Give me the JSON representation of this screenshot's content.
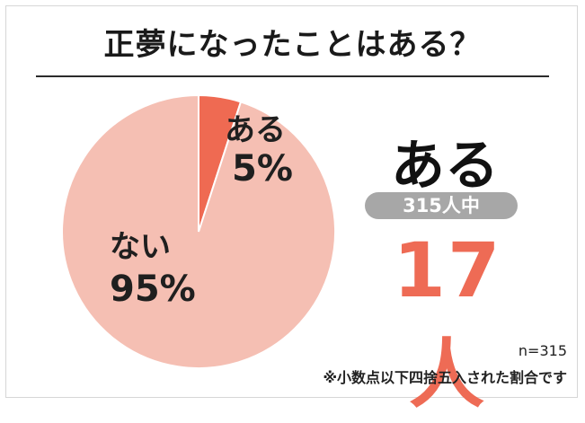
{
  "title": "正夢になったことはある？",
  "chart_data": {
    "type": "pie",
    "title": "正夢になったことはある？",
    "slices": [
      {
        "label": "ある",
        "value": 5,
        "display": "5%",
        "color": "#ef6a52"
      },
      {
        "label": "ない",
        "value": 95,
        "display": "95%",
        "color": "#f5bfb3"
      }
    ],
    "start": "12 o'clock",
    "direction": "clockwise"
  },
  "stat": {
    "heading": "ある",
    "badge": "315人中",
    "value": "17人"
  },
  "footnotes": {
    "sample": "n=315",
    "rounding": "※小数点以下四捨五入された割合です"
  },
  "colors": {
    "highlight": "#ee6b55",
    "badge": "#a7a7a7",
    "text": "#1a1a1a"
  }
}
